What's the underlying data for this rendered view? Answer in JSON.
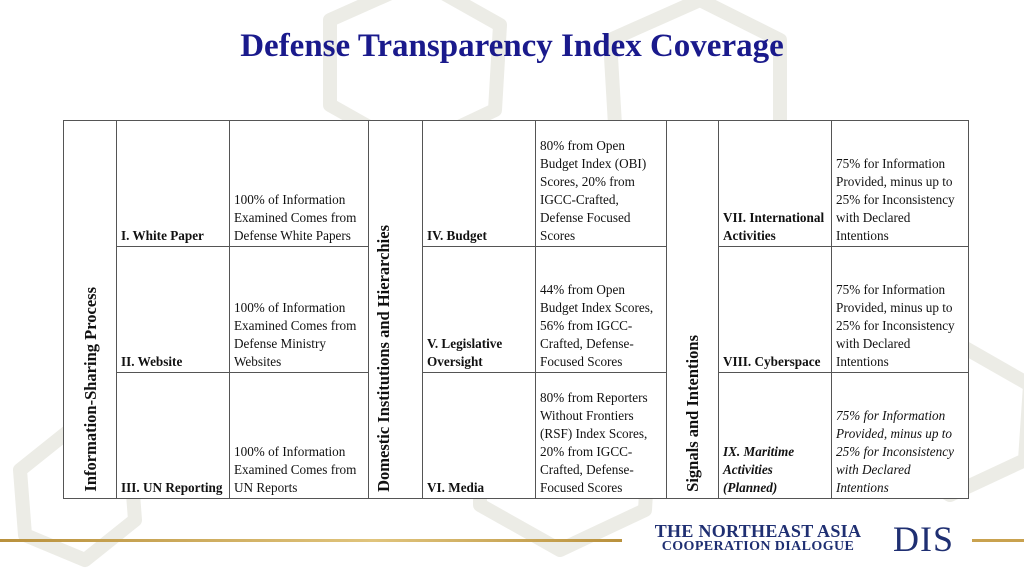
{
  "title": "Defense Transparency Index Coverage",
  "categories": {
    "col1": "Information-Sharing Process",
    "col2": "Domestic Institutions and Hierarchies",
    "col3": "Signals and Intentions"
  },
  "rows": [
    {
      "item1": "I. White Paper",
      "desc1": "100% of Information Examined Comes from Defense White Papers",
      "item2": "IV. Budget",
      "desc2": "80% from Open Budget Index (OBI) Scores, 20% from IGCC-Crafted, Defense Focused Scores",
      "item3": "VII. International Activities",
      "desc3": "75% for Information Provided, minus up to 25% for Inconsistency with Declared Intentions"
    },
    {
      "item1": "II. Website",
      "desc1": "100% of Information Examined Comes from Defense Ministry Websites",
      "item2": "V. Legislative Oversight",
      "desc2": "44% from Open Budget Index Scores, 56% from IGCC-Crafted, Defense-Focused Scores",
      "item3": "VIII. Cyberspace",
      "desc3": "75% for Information Provided, minus up to 25% for Inconsistency with Declared Intentions"
    },
    {
      "item1": "III. UN Reporting",
      "desc1": "100% of Information Examined Comes from UN Reports",
      "item2": "VI. Media",
      "desc2": "80% from Reporters Without Frontiers (RSF) Index Scores, 20% from IGCC-Crafted, Defense-Focused Scores",
      "item3": "IX. Maritime Activities (Planned)",
      "desc3": "75% for Information Provided, minus up to 25% for Inconsistency with Declared Intentions"
    }
  ],
  "footer": {
    "org_line1": "THE NORTHEAST ASIA",
    "org_line2": "COOPERATION DIALOGUE",
    "acronym": "DIS"
  },
  "colors": {
    "title": "#1a1a8c",
    "category_blue": "#8faed6",
    "category_gray": "#d6d6d6",
    "category_pink": "#d99494",
    "footer_gold": "#c9a24f",
    "footer_navy": "#1f2f72"
  }
}
